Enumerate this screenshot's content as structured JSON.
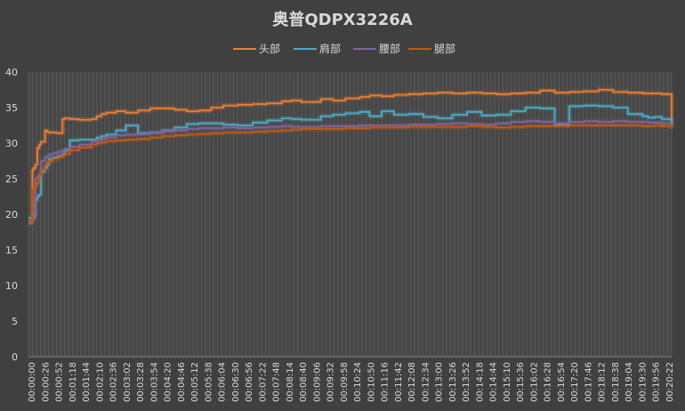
{
  "chart_data": {
    "type": "line",
    "title": "奥普QDPX3226A",
    "xlabel": "",
    "ylabel": "",
    "ylim": [
      0,
      40
    ],
    "yticks": [
      0,
      5,
      10,
      15,
      20,
      25,
      30,
      35,
      40
    ],
    "legend_position": "top",
    "grid": "vertical-minor",
    "x_tick_labels": [
      "00:00:00",
      "00:00:26",
      "00:00:52",
      "00:01:18",
      "00:01:44",
      "00:02:10",
      "00:02:36",
      "00:03:02",
      "00:03:28",
      "00:03:54",
      "00:04:20",
      "00:04:46",
      "00:05:12",
      "00:05:38",
      "00:06:04",
      "00:06:30",
      "00:06:56",
      "00:07:22",
      "00:07:48",
      "00:08:14",
      "00:08:40",
      "00:09:06",
      "00:09:32",
      "00:09:58",
      "00:10:24",
      "00:10:50",
      "00:11:16",
      "00:11:42",
      "00:12:08",
      "00:12:34",
      "00:13:00",
      "00:13:26",
      "00:13:52",
      "00:14:18",
      "00:14:44",
      "00:15:10",
      "00:15:36",
      "00:16:02",
      "00:16:28",
      "00:16:54",
      "00:17:20",
      "00:17:46",
      "00:18:12",
      "00:18:38",
      "00:19:04",
      "00:19:30",
      "00:19:56",
      "00:20:22"
    ],
    "x_seconds": [
      0,
      8,
      10,
      14,
      18,
      22,
      26,
      34,
      38,
      42,
      50,
      60,
      70,
      75,
      85,
      104,
      130,
      140,
      150,
      160,
      180,
      200,
      225,
      250,
      275,
      300,
      325,
      350,
      375,
      400,
      430,
      460,
      490,
      520,
      540,
      560,
      600,
      625,
      650,
      680,
      700,
      725,
      750,
      780,
      810,
      840,
      870,
      900,
      930,
      960,
      990,
      1020,
      1050,
      1080,
      1110,
      1140,
      1170,
      1200,
      1230,
      1260,
      1272,
      1285,
      1300,
      1320
    ],
    "series": [
      {
        "name": "头部",
        "color": "#ed7d31",
        "values": [
          19,
          26.2,
          26.5,
          27,
          29.3,
          29.8,
          30.2,
          31.8,
          31.6,
          31.5,
          31.5,
          31.4,
          33.4,
          33.5,
          33.4,
          33.3,
          33.4,
          33.8,
          34.1,
          34.3,
          34.5,
          34.3,
          34.6,
          34.9,
          34.9,
          34.7,
          34.5,
          34.6,
          35,
          35.3,
          35.4,
          35.5,
          35.6,
          35.9,
          36,
          35.8,
          36.2,
          36,
          36.3,
          36.5,
          36.7,
          36.6,
          36.8,
          36.9,
          37,
          37.1,
          37,
          37.1,
          37,
          36.9,
          37,
          37.1,
          37.4,
          37.1,
          37.2,
          37.3,
          37.5,
          37.2,
          37.1,
          37,
          37,
          37,
          36.9,
          32.5
        ]
      },
      {
        "name": "肩部",
        "color": "#4bacc6",
        "values": [
          19.5,
          19.8,
          19.8,
          22,
          22.5,
          22.8,
          26,
          26.5,
          27,
          27.8,
          28,
          28.2,
          28.5,
          29,
          30.4,
          30.5,
          30.5,
          30.8,
          31,
          31.2,
          31.8,
          32.5,
          31.4,
          31.5,
          31.8,
          32.2,
          32.7,
          32.8,
          32.8,
          32.6,
          32.5,
          32.9,
          33.2,
          33.5,
          33.4,
          33.3,
          33.8,
          34,
          34.2,
          34.4,
          33.8,
          34.5,
          34,
          34.1,
          33.7,
          33.5,
          34,
          34.4,
          33.9,
          34,
          34.5,
          35,
          34.9,
          32.6,
          35.2,
          35.3,
          35.2,
          35,
          34.1,
          33.8,
          33.6,
          33.7,
          33.4,
          32.5
        ]
      },
      {
        "name": "腰部",
        "color": "#8064a2",
        "values": [
          19,
          19.3,
          19.5,
          25,
          25.2,
          25.5,
          27.5,
          28,
          28.2,
          28.4,
          28.6,
          28.8,
          29,
          29.2,
          29.5,
          29.8,
          30.2,
          30.4,
          30.6,
          30.8,
          31.1,
          31.2,
          31.3,
          31.5,
          31.7,
          31.8,
          32,
          32.1,
          32.1,
          32.2,
          32.1,
          32.2,
          32.3,
          32.4,
          32.3,
          32.3,
          32.4,
          32.4,
          32.4,
          32.5,
          32.5,
          32.5,
          32.5,
          32.6,
          32.6,
          32.7,
          32.8,
          32.7,
          32.6,
          32.8,
          33,
          33.1,
          33,
          32.8,
          33,
          33.1,
          33,
          33.1,
          33,
          33,
          32.9,
          32.9,
          32.8,
          32.6
        ]
      },
      {
        "name": "腿部",
        "color": "#c55a11",
        "values": [
          18.7,
          23.5,
          23.6,
          24,
          24.5,
          25.5,
          26.2,
          27,
          27.3,
          27.5,
          27.8,
          28,
          28.3,
          28.5,
          29,
          29.4,
          29.8,
          30,
          30.1,
          30.3,
          30.4,
          30.5,
          30.6,
          30.8,
          31,
          31.1,
          31.2,
          31.3,
          31.4,
          31.5,
          31.5,
          31.6,
          31.7,
          31.8,
          31.9,
          32,
          32,
          32,
          32.1,
          32.1,
          32.2,
          32.2,
          32.2,
          32.3,
          32.3,
          32.3,
          32.3,
          32.4,
          32.3,
          32.2,
          32.3,
          32.4,
          32.4,
          32.4,
          32.5,
          32.5,
          32.5,
          32.5,
          32.5,
          32.4,
          32.4,
          32.5,
          32.4,
          32
        ]
      }
    ]
  }
}
